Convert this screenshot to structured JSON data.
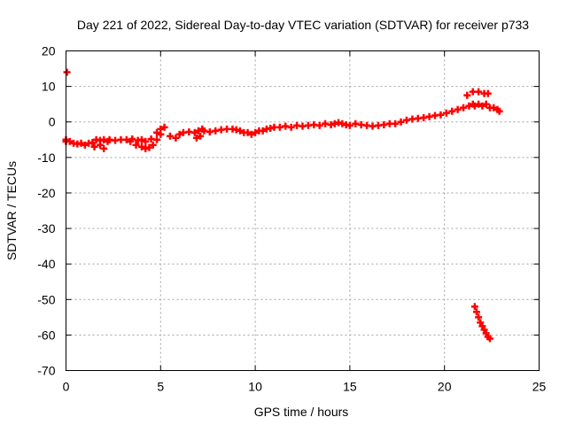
{
  "chart_data": {
    "type": "scatter",
    "title": "Day 221 of 2022, Sidereal Day-to-day VTEC variation (SDTVAR) for receiver p733",
    "xlabel": "GPS time / hours",
    "ylabel": "SDTVAR / TECUs",
    "xlim": [
      0,
      25
    ],
    "ylim": [
      -70,
      20
    ],
    "xticks": [
      0,
      5,
      10,
      15,
      20,
      25
    ],
    "yticks": [
      -70,
      -60,
      -50,
      -40,
      -30,
      -20,
      -10,
      0,
      10,
      20
    ],
    "grid": true,
    "marker_color": "#ff0000",
    "series": [
      {
        "name": "SDTVAR",
        "x": [
          0.0,
          0.05,
          0.0,
          0.2,
          0.4,
          0.6,
          0.8,
          1.0,
          1.2,
          1.4,
          1.6,
          1.8,
          2.0,
          2.2,
          1.5,
          1.8,
          2.0,
          2.3,
          2.6,
          2.9,
          3.2,
          3.5,
          3.8,
          4.0,
          4.2,
          3.4,
          3.7,
          4.0,
          4.2,
          4.4,
          4.6,
          4.8,
          5.0,
          4.5,
          4.8,
          5.0,
          5.2,
          5.5,
          5.8,
          6.0,
          6.2,
          6.5,
          6.8,
          7.0,
          7.2,
          6.9,
          7.1,
          7.3,
          7.6,
          7.9,
          8.2,
          8.5,
          8.8,
          9.0,
          9.2,
          9.4,
          9.6,
          9.8,
          10.0,
          10.2,
          10.4,
          10.6,
          10.8,
          11.0,
          11.3,
          11.6,
          11.9,
          12.2,
          12.5,
          12.8,
          13.1,
          13.4,
          13.7,
          14.0,
          14.2,
          14.4,
          14.6,
          14.8,
          15.0,
          15.3,
          15.6,
          15.9,
          16.2,
          16.5,
          16.8,
          17.1,
          17.4,
          17.7,
          18.0,
          18.3,
          18.6,
          18.9,
          19.2,
          19.5,
          19.8,
          20.1,
          20.4,
          20.7,
          21.0,
          21.3,
          21.5,
          21.6,
          21.8,
          22.0,
          22.2,
          22.4,
          22.6,
          22.8,
          22.9,
          21.2,
          21.5,
          21.8,
          22.1,
          22.3,
          21.6,
          21.7,
          21.8,
          21.9,
          22.0,
          22.1,
          22.2,
          22.3,
          22.4
        ],
        "y": [
          -5.0,
          14.0,
          -5.5,
          -5.5,
          -6.0,
          -6.2,
          -6.0,
          -6.5,
          -6.0,
          -5.8,
          -5.0,
          -5.2,
          -5.0,
          -5.5,
          -7.0,
          -6.5,
          -7.5,
          -5.0,
          -5.2,
          -5.0,
          -5.0,
          -4.8,
          -5.2,
          -5.0,
          -5.5,
          -5.5,
          -6.5,
          -7.0,
          -7.5,
          -7.2,
          -6.5,
          -5.0,
          -3.5,
          -4.8,
          -3.0,
          -2.0,
          -1.5,
          -4.0,
          -4.5,
          -3.5,
          -3.0,
          -2.8,
          -3.0,
          -2.5,
          -2.0,
          -4.5,
          -4.0,
          -2.5,
          -2.8,
          -2.5,
          -2.2,
          -2.0,
          -2.0,
          -2.2,
          -2.5,
          -3.0,
          -3.0,
          -3.5,
          -3.0,
          -2.5,
          -2.5,
          -2.0,
          -1.8,
          -1.5,
          -1.5,
          -1.2,
          -1.5,
          -1.0,
          -1.2,
          -1.0,
          -0.8,
          -1.0,
          -0.5,
          -0.8,
          -0.5,
          -0.2,
          -0.5,
          -0.8,
          -1.0,
          -0.5,
          -0.8,
          -1.0,
          -1.2,
          -1.0,
          -0.8,
          -0.5,
          -0.5,
          0.0,
          0.5,
          0.8,
          1.0,
          1.2,
          1.5,
          1.8,
          2.0,
          2.5,
          3.0,
          3.5,
          4.0,
          4.5,
          5.0,
          4.5,
          5.0,
          4.5,
          5.0,
          4.0,
          4.0,
          3.5,
          3.0,
          7.5,
          8.5,
          8.5,
          8.0,
          8.0,
          -52.0,
          -53.5,
          -55.0,
          -56.5,
          -57.5,
          -58.5,
          -59.5,
          -60.5,
          -61.0
        ]
      }
    ]
  }
}
